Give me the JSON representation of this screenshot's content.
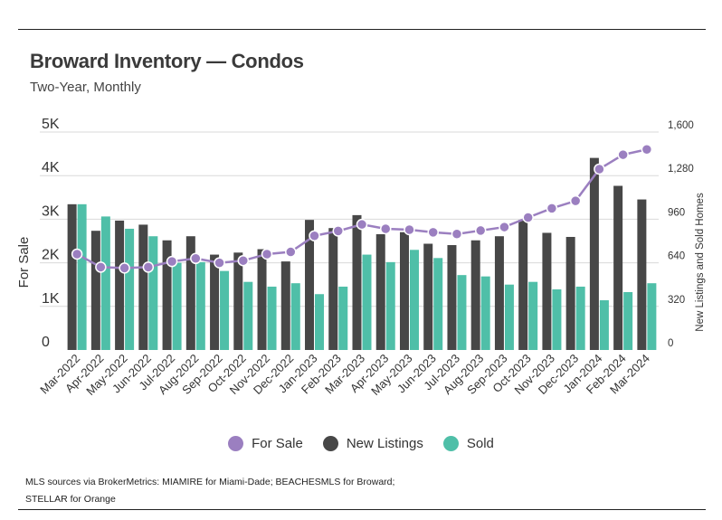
{
  "header": {
    "title": "Broward Inventory — Condos",
    "subtitle": "Two-Year, Monthly"
  },
  "source": {
    "line1": "MLS sources via BrokerMetrics: MIAMIRE for Miami-Dade; BEACHESMLS for Broward;",
    "line2": "STELLAR for Orange"
  },
  "colors": {
    "for_sale": "#9b7fc0",
    "new_listings": "#474747",
    "sold": "#4fbfa8",
    "grid": "#d9d9d9"
  },
  "chart_data": {
    "type": "bar",
    "title": "Broward Inventory — Condos",
    "subtitle": "Two-Year, Monthly",
    "xlabel": "",
    "ylabel": "For Sale",
    "y2label": "New Listings and Sold Homes",
    "ylim": [
      0,
      5000
    ],
    "y2lim": [
      0,
      1600
    ],
    "y_ticks": [
      "0",
      "1K",
      "2K",
      "3K",
      "4K",
      "5K"
    ],
    "y_tick_values": [
      0,
      1000,
      2000,
      3000,
      4000,
      5000
    ],
    "y2_ticks": [
      "0",
      "320",
      "640",
      "960",
      "1,280",
      "1,600"
    ],
    "y2_tick_values": [
      0,
      320,
      640,
      960,
      1280,
      1600
    ],
    "grid": true,
    "legend_position": "bottom",
    "categories": [
      "Mar-2022",
      "Apr-2022",
      "May-2022",
      "Jun-2022",
      "Jul-2022",
      "Aug-2022",
      "Sep-2022",
      "Oct-2022",
      "Nov-2022",
      "Dec-2022",
      "Jan-2023",
      "Feb-2023",
      "Mar-2023",
      "Apr-2023",
      "May-2023",
      "Jun-2023",
      "Jul-2023",
      "Aug-2023",
      "Sep-2023",
      "Oct-2023",
      "Nov-2023",
      "Dec-2023",
      "Jan-2024",
      "Feb-2024",
      "Mar-2024"
    ],
    "series": [
      {
        "name": "For Sale",
        "type": "line",
        "axis": "left",
        "values": [
          2200,
          1900,
          1880,
          1900,
          2030,
          2100,
          2000,
          2050,
          2200,
          2250,
          2620,
          2730,
          2880,
          2780,
          2760,
          2700,
          2660,
          2740,
          2820,
          3040,
          3250,
          3420,
          4150,
          4480,
          4600
        ]
      },
      {
        "name": "New Listings",
        "type": "bar",
        "axis": "right",
        "values": [
          1070,
          875,
          950,
          920,
          805,
          835,
          700,
          715,
          740,
          650,
          955,
          895,
          990,
          850,
          865,
          780,
          770,
          805,
          835,
          955,
          860,
          830,
          1410,
          1205,
          1105
        ]
      },
      {
        "name": "Sold",
        "type": "bar",
        "axis": "right",
        "values": [
          1070,
          980,
          890,
          835,
          640,
          645,
          580,
          500,
          465,
          490,
          410,
          465,
          700,
          645,
          735,
          675,
          550,
          540,
          480,
          500,
          445,
          465,
          365,
          425,
          490
        ]
      }
    ]
  }
}
